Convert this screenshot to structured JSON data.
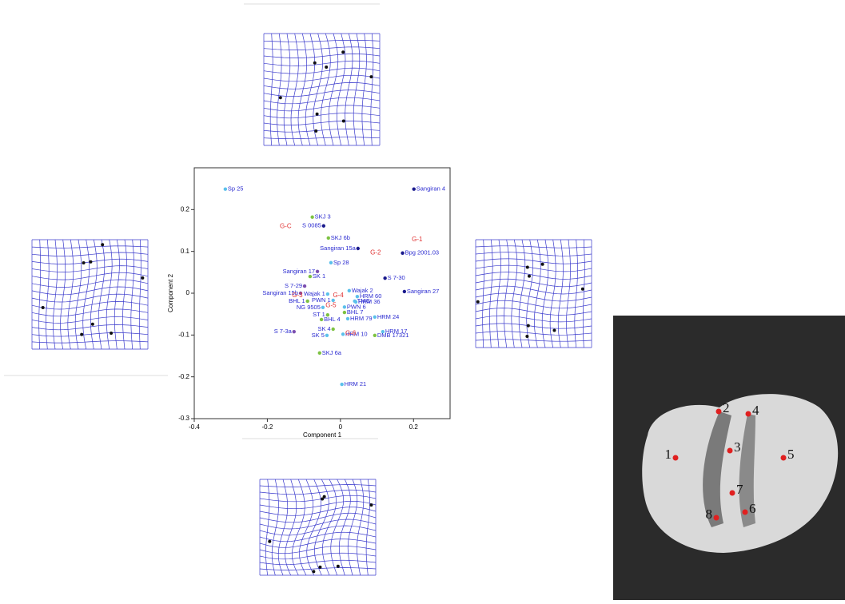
{
  "chart_data": {
    "type": "scatter",
    "xlabel": "Component 1",
    "ylabel": "Component 2",
    "xlim": [
      -0.4,
      0.3
    ],
    "ylim": [
      -0.3,
      0.3
    ],
    "xticks": [
      -0.4,
      -0.2,
      0,
      0.2
    ],
    "yticks": [
      -0.3,
      -0.2,
      -0.1,
      0,
      0.1,
      0.2
    ],
    "labels": [
      "Sp 25",
      "Sangiran 4",
      "SKJ 3",
      "S 0085",
      "SKJ 6b",
      "Sangiran 15a",
      "Bpg 2001.03",
      "Sp 28",
      "Sangiran 17",
      "SK 1",
      "S 7-30",
      "S 7-29",
      "Sangiran 27",
      "Wajak 2",
      "Sangiran 15b",
      "Wajak 1",
      "TMG",
      "HRM 60",
      "HRM 36",
      "BHL 1",
      "PWN 1",
      "NG 9505",
      "PWN 6",
      "BHL 7",
      "ST 1",
      "HRM 79",
      "HRM 24",
      "BHL 4",
      "SK 4",
      "SK 5",
      "HRM 10",
      "HRM 17",
      "DMB 17321",
      "S 7-3a",
      "SKJ 6a",
      "HRM 21"
    ],
    "x": [
      -0.315,
      0.201,
      -0.077,
      -0.046,
      -0.033,
      0.048,
      0.17,
      -0.026,
      -0.063,
      -0.083,
      0.122,
      -0.098,
      0.175,
      0.024,
      -0.109,
      -0.035,
      0.039,
      0.046,
      0.042,
      -0.09,
      -0.02,
      -0.048,
      0.011,
      0.011,
      -0.035,
      0.02,
      0.094,
      -0.052,
      -0.02,
      -0.037,
      0.007,
      0.116,
      0.094,
      -0.127,
      -0.057,
      0.004
    ],
    "values": [
      0.249,
      0.249,
      0.182,
      0.161,
      0.132,
      0.107,
      0.096,
      0.073,
      0.052,
      0.04,
      0.036,
      0.017,
      0.004,
      0.006,
      0.0,
      -0.002,
      -0.019,
      -0.008,
      -0.021,
      -0.019,
      -0.017,
      -0.034,
      -0.033,
      -0.046,
      -0.052,
      -0.061,
      -0.057,
      -0.063,
      -0.086,
      -0.101,
      -0.098,
      -0.092,
      -0.101,
      -0.092,
      -0.143,
      -0.218
    ],
    "colors": [
      "#5bc0eb",
      "#1a1a8c",
      "#7dc242",
      "#1a1a8c",
      "#7dc242",
      "#1a1a8c",
      "#1a1a8c",
      "#5bc0eb",
      "#7b4fb0",
      "#7dc242",
      "#1a1a8c",
      "#7b4fb0",
      "#1a1a8c",
      "#5bc0eb",
      "#7b4fb0",
      "#5bc0eb",
      "#5bc0eb",
      "#5bc0eb",
      "#5bc0eb",
      "#7dc242",
      "#5bc0eb",
      "#5bc0eb",
      "#5bc0eb",
      "#7dc242",
      "#7dc242",
      "#5bc0eb",
      "#5bc0eb",
      "#7dc242",
      "#7dc242",
      "#5bc0eb",
      "#5bc0eb",
      "#5bc0eb",
      "#7dc242",
      "#7b4fb0",
      "#7dc242",
      "#5bc0eb"
    ],
    "annotations": [
      {
        "text": "G-C",
        "x": -0.15,
        "y": 0.16
      },
      {
        "text": "G-1",
        "x": 0.21,
        "y": 0.128
      },
      {
        "text": "G-2",
        "x": 0.096,
        "y": 0.097
      },
      {
        "text": "G-3",
        "x": -0.118,
        "y": -0.006
      },
      {
        "text": "G-4",
        "x": -0.006,
        "y": -0.006
      },
      {
        "text": "G-5",
        "x": -0.026,
        "y": -0.029
      },
      {
        "text": "G-6",
        "x": 0.028,
        "y": -0.096
      }
    ]
  },
  "landmarks": [
    "1",
    "2",
    "3",
    "4",
    "5",
    "6",
    "7",
    "8"
  ]
}
